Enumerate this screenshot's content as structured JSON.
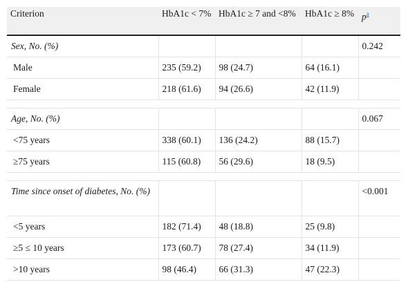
{
  "header": {
    "criterion": "Criterion",
    "col1": "HbA1c < 7%",
    "col2": "HbA1c ≥ 7 and <8%",
    "col3": "HbA1c ≥ 8%",
    "p": "p",
    "p_sup": "a"
  },
  "sections": [
    {
      "title": "Sex, No. (%)",
      "p": "0.242",
      "rows": [
        {
          "label": "Male",
          "v1": "235 (59.2)",
          "v2": "98 (24.7)",
          "v3": "64 (16.1)"
        },
        {
          "label": "Female",
          "v1": "218 (61.6)",
          "v2": "94 (26.6)",
          "v3": "42 (11.9)"
        }
      ]
    },
    {
      "title": "Age, No. (%)",
      "p": "0.067",
      "rows": [
        {
          "label": "<75 years",
          "v1": "338 (60.1)",
          "v2": "136 (24.2)",
          "v3": "88 (15.7)"
        },
        {
          "label": "≥75 years",
          "v1": "115 (60.8)",
          "v2": "56 (29.6)",
          "v3": "18 (9.5)"
        }
      ]
    },
    {
      "title": "Time since onset of diabetes, No. (%)",
      "p": "<0.001",
      "rows": [
        {
          "label": "<5 years",
          "v1": "182 (71.4)",
          "v2": "48 (18.8)",
          "v3": "25 (9.8)"
        },
        {
          "label": "≥5 ≤ 10 years",
          "v1": "173 (60.7)",
          "v2": "78 (27.4)",
          "v3": "34 (11.9)"
        },
        {
          "label": ">10 years",
          "v1": "98 (46.4)",
          "v2": "66 (31.3)",
          "v3": "47 (22.3)"
        }
      ]
    }
  ]
}
